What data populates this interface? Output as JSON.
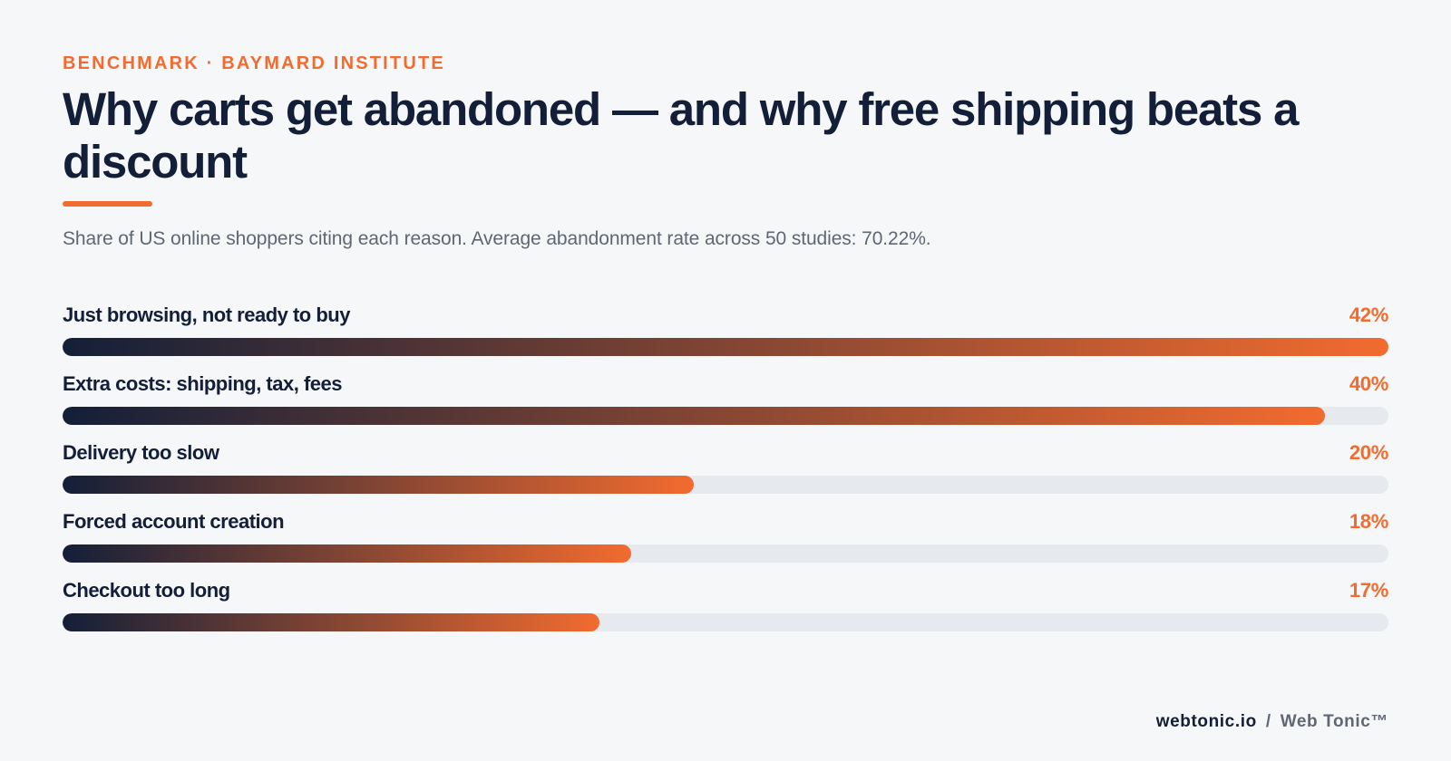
{
  "header": {
    "eyebrow": "BENCHMARK · BAYMARD INSTITUTE",
    "title": "Why carts get abandoned — and why free shipping beats a discount",
    "subtitle": "Share of US online shoppers citing each reason. Average abandonment rate across 50 studies: 70.22%."
  },
  "colors": {
    "accent": "#f26b2f",
    "navy": "#131f38",
    "track": "#e6e9ee",
    "background": "#f6f7f9",
    "muted": "#5f6775"
  },
  "chart_data": {
    "type": "bar",
    "orientation": "horizontal",
    "categories": [
      "Just browsing, not ready to buy",
      "Extra costs: shipping, tax, fees",
      "Delivery too slow",
      "Forced account creation",
      "Checkout too long"
    ],
    "values": [
      42,
      40,
      20,
      18,
      17
    ],
    "value_labels": [
      "42%",
      "40%",
      "20%",
      "18%",
      "17%"
    ],
    "unit": "%",
    "xlim": [
      0,
      42
    ],
    "grid": false,
    "legend": "none"
  },
  "footer": {
    "site": "webtonic.io",
    "separator": "/",
    "brand": "Web Tonic™"
  }
}
